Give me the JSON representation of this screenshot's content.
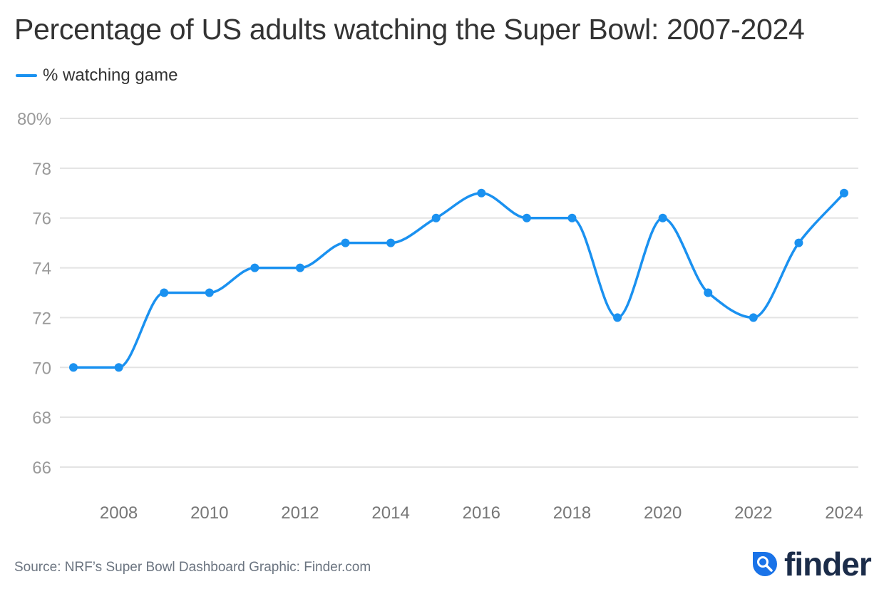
{
  "chart_data": {
    "type": "line",
    "title": "Percentage of US adults watching the Super Bowl: 2007-2024",
    "xlabel": "",
    "ylabel": "",
    "x": [
      2007,
      2008,
      2009,
      2010,
      2011,
      2012,
      2013,
      2014,
      2015,
      2016,
      2017,
      2018,
      2019,
      2020,
      2021,
      2022,
      2023,
      2024
    ],
    "series": [
      {
        "name": "% watching game",
        "color": "#1a91f0",
        "values": [
          70,
          70,
          73,
          73,
          74,
          74,
          75,
          75,
          76,
          77,
          76,
          76,
          72,
          76,
          73,
          72,
          75,
          77
        ]
      }
    ],
    "xlim": [
      2007,
      2024
    ],
    "ylim": [
      65,
      80
    ],
    "x_ticks": [
      2008,
      2010,
      2012,
      2014,
      2016,
      2018,
      2020,
      2022,
      2024
    ],
    "x_tick_labels": [
      "2008",
      "2010",
      "2012",
      "2014",
      "2016",
      "2018",
      "2020",
      "2022",
      "2024"
    ],
    "y_ticks": [
      66,
      68,
      70,
      72,
      74,
      76,
      78,
      80
    ],
    "y_tick_labels": [
      "66",
      "68",
      "70",
      "72",
      "74",
      "76",
      "78",
      "80%"
    ],
    "grid": true,
    "legend_position": "top-left",
    "smooth": true
  },
  "legend_label": "% watching game",
  "source": "Source: NRF’s Super Bowl Dashboard Graphic: Finder.com",
  "logo": {
    "text": "finder",
    "icon": "search-droplet-icon",
    "brand_color": "#1a73e8",
    "text_color": "#1b2c49"
  }
}
